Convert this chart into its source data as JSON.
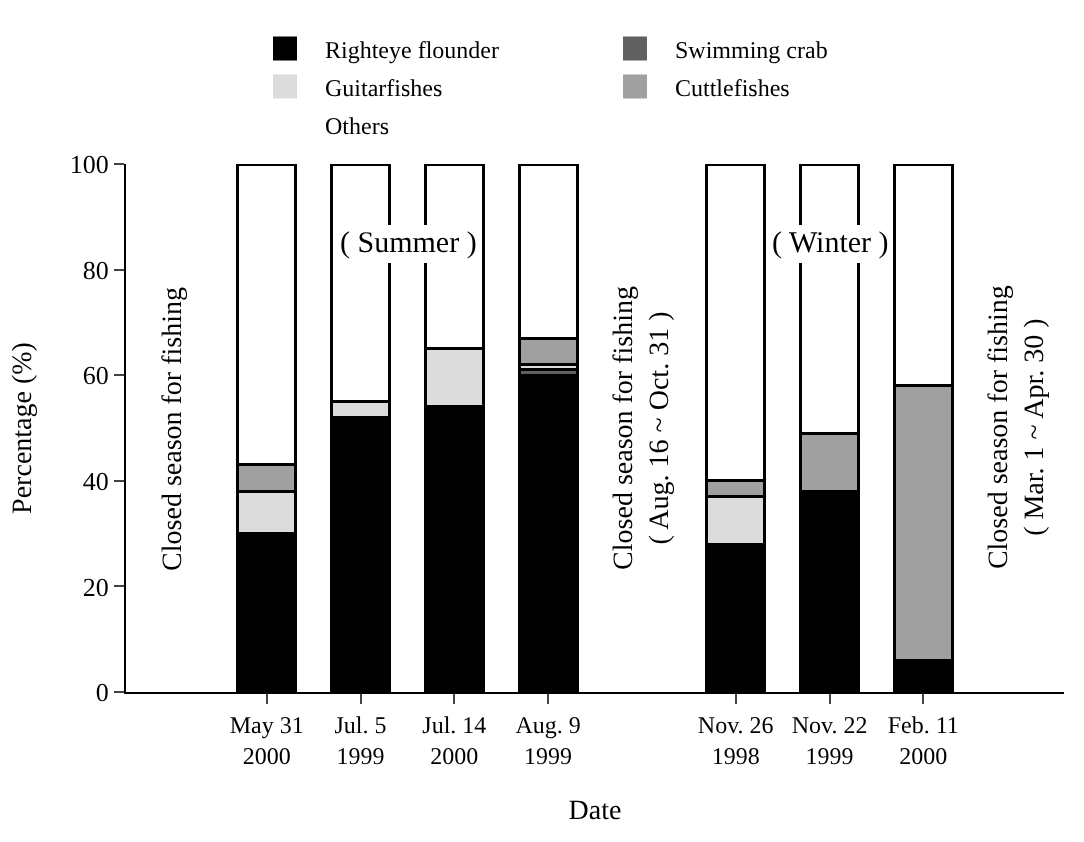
{
  "chart_data": {
    "type": "bar",
    "stacked": true,
    "xlabel": "Date",
    "ylabel": "Percentage (%)",
    "categories": [
      null,
      "May 31\n2000",
      "Jul. 5\n1999",
      "Jul. 14\n2000",
      "Aug. 9\n1999",
      null,
      "Nov. 26\n1998",
      "Nov. 22\n1999",
      "Feb. 11\n2000",
      null
    ],
    "series": [
      {
        "name": "Righteye flounder",
        "color": "#000000",
        "values": [
          null,
          30,
          52,
          54,
          60,
          null,
          28,
          38,
          6,
          null
        ]
      },
      {
        "name": "Swimming crab",
        "color": "#606060",
        "values": [
          null,
          0,
          0,
          0,
          1,
          null,
          0,
          0,
          0,
          null
        ]
      },
      {
        "name": "Guitarfishes",
        "color": "#dcdcdc",
        "values": [
          null,
          8,
          3,
          11,
          1,
          null,
          9,
          0,
          0,
          null
        ]
      },
      {
        "name": "Cuttlefishes",
        "color": "#a0a0a0",
        "values": [
          null,
          5,
          0,
          0,
          5,
          null,
          3,
          11,
          52,
          null
        ]
      },
      {
        "name": "Others",
        "color": "#ffffff",
        "values": [
          null,
          57,
          45,
          35,
          33,
          null,
          60,
          51,
          42,
          null
        ]
      }
    ],
    "annotations": [
      "Closed season for fishing",
      "( Summer )",
      "Closed season for fishing\n( Aug. 16 ~ Oct. 31 )",
      "( Winter )",
      "Closed season for fishing\n( Mar. 1 ~ Apr. 30 )"
    ],
    "ylim": [
      0,
      100
    ],
    "yticks": [
      0,
      20,
      40,
      60,
      80,
      100
    ],
    "legend": "top"
  }
}
